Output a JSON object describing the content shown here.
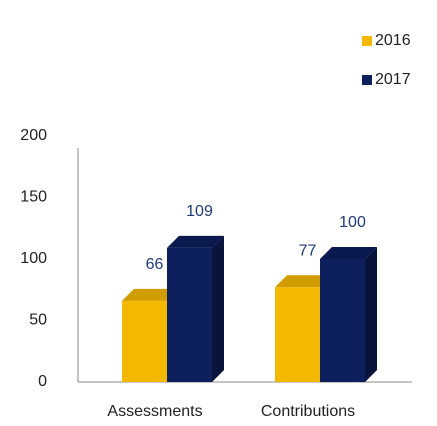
{
  "chart_data": {
    "type": "bar3d",
    "categories": [
      "Assessments",
      "Contributions"
    ],
    "series": [
      {
        "name": "2016",
        "color": "#f5b800",
        "values": [
          66,
          77
        ]
      },
      {
        "name": "2017",
        "color": "#0d1f5c",
        "values": [
          109,
          100
        ]
      }
    ],
    "ylim": [
      0,
      200
    ],
    "yticks": [
      0,
      50,
      100,
      150,
      200
    ],
    "grid": false,
    "legend": "top-right"
  }
}
